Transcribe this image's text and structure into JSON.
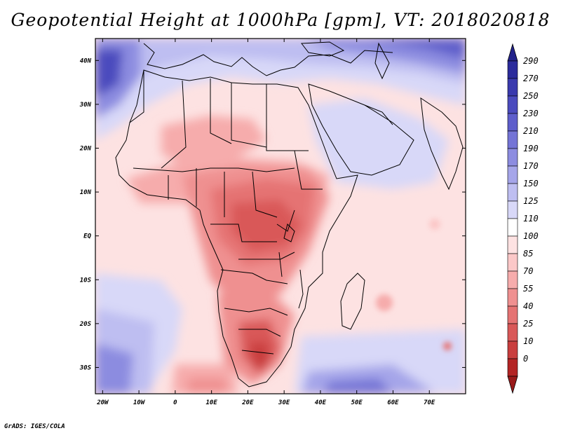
{
  "title": "Geopotential Height at 1000hPa [gpm], VT: 2018020818",
  "credit": "GrADS: IGES/COLA",
  "map": {
    "variable": "Geopotential Height at 1000hPa",
    "units": "gpm",
    "valid_time": "2018020818",
    "lon_range": [
      -22,
      80
    ],
    "lat_range": [
      -36,
      45
    ],
    "lat_ticks": [
      {
        "value": 40,
        "label": "40N"
      },
      {
        "value": 30,
        "label": "30N"
      },
      {
        "value": 20,
        "label": "20N"
      },
      {
        "value": 10,
        "label": "10N"
      },
      {
        "value": 0,
        "label": "EQ"
      },
      {
        "value": -10,
        "label": "10S"
      },
      {
        "value": -20,
        "label": "20S"
      },
      {
        "value": -30,
        "label": "30S"
      }
    ],
    "lon_ticks": [
      {
        "value": -20,
        "label": "20W"
      },
      {
        "value": -10,
        "label": "10W"
      },
      {
        "value": 0,
        "label": "0"
      },
      {
        "value": 10,
        "label": "10E"
      },
      {
        "value": 20,
        "label": "20E"
      },
      {
        "value": 30,
        "label": "30E"
      },
      {
        "value": 40,
        "label": "40E"
      },
      {
        "value": 50,
        "label": "50E"
      },
      {
        "value": 60,
        "label": "60E"
      },
      {
        "value": 70,
        "label": "70E"
      }
    ]
  },
  "colorbar": {
    "levels": [
      {
        "label": "290",
        "color": "#2b2b9c"
      },
      {
        "label": "270",
        "color": "#3a3aae"
      },
      {
        "label": "250",
        "color": "#4b4bbe"
      },
      {
        "label": "230",
        "color": "#5e5ecb"
      },
      {
        "label": "210",
        "color": "#7474d6"
      },
      {
        "label": "190",
        "color": "#8c8ce0"
      },
      {
        "label": "170",
        "color": "#a5a5e9"
      },
      {
        "label": "150",
        "color": "#bebef1"
      },
      {
        "label": "125",
        "color": "#d8d8f8"
      },
      {
        "label": "110",
        "color": "#ffffff"
      },
      {
        "label": "100",
        "color": "#fde2e2"
      },
      {
        "label": "85",
        "color": "#fbc8c8"
      },
      {
        "label": "70",
        "color": "#f6acac"
      },
      {
        "label": "55",
        "color": "#ef9090"
      },
      {
        "label": "40",
        "color": "#e57373"
      },
      {
        "label": "25",
        "color": "#d95858"
      },
      {
        "label": "10",
        "color": "#c93e3e"
      },
      {
        "label": "0",
        "color": "#b32424"
      }
    ],
    "top_arrow_color": "#22228a",
    "bottom_arrow_color": "#9a1a1a"
  }
}
